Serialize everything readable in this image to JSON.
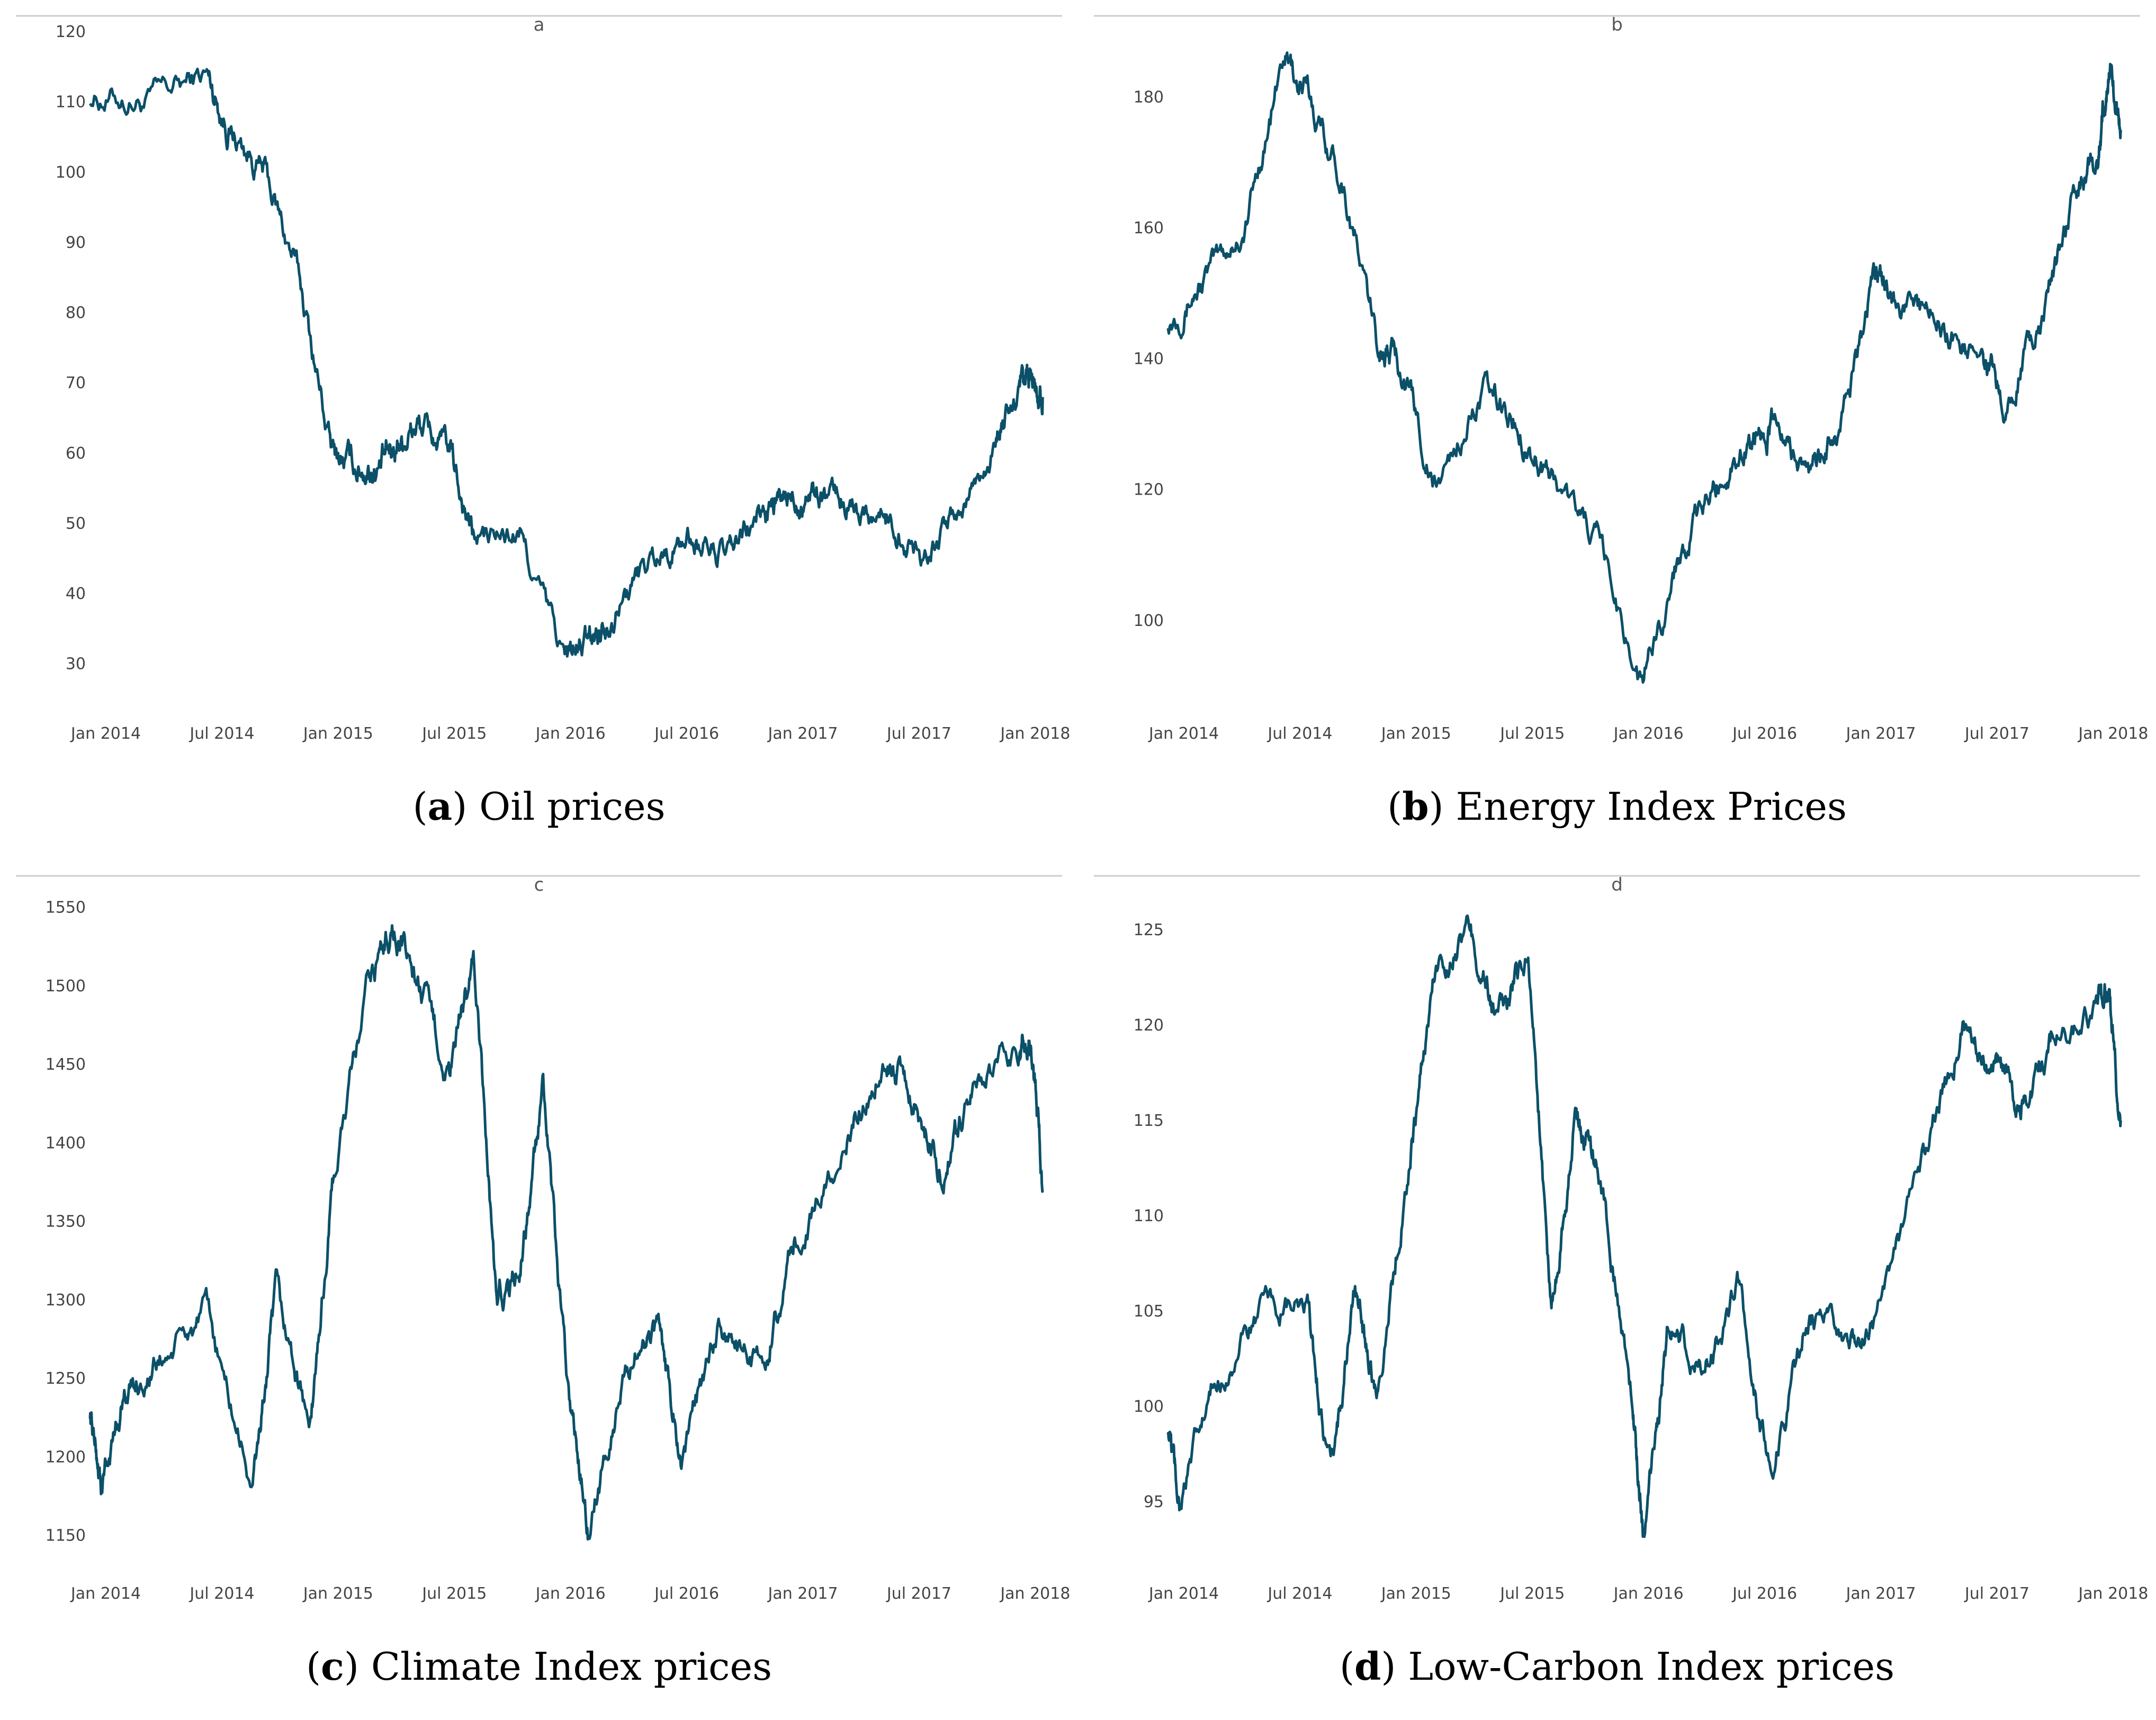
{
  "colors": {
    "line": "#0b5068",
    "rule": "#cccccc",
    "tick_text": "#444444",
    "caption_text": "#000000"
  },
  "chart_data": [
    {
      "type": "line",
      "panel_label": "a",
      "caption_letter": "a",
      "caption_text": "Oil prices",
      "x_ticks": [
        "Jan 2014",
        "Jul 2014",
        "Jan 2015",
        "Jul 2015",
        "Jan 2016",
        "Jul 2016",
        "Jan 2017",
        "Jul 2017",
        "Jan 2018"
      ],
      "x_range": [
        2014.0,
        2018.17
      ],
      "y_ticks": [
        30,
        40,
        50,
        60,
        70,
        80,
        90,
        100,
        110,
        120
      ],
      "y_range": [
        25,
        120
      ],
      "series": [
        {
          "name": "Oil price",
          "x": [
            2014.0,
            2014.25,
            2014.5,
            2014.6,
            2014.75,
            2014.9,
            2015.04,
            2015.15,
            2015.25,
            2015.33,
            2015.42,
            2015.55,
            2015.65,
            2015.85,
            2016.04,
            2016.15,
            2016.25,
            2016.42,
            2016.58,
            2016.75,
            2016.9,
            2017.0,
            2017.1,
            2017.25,
            2017.42,
            2017.58,
            2017.75,
            2017.9,
            2018.0,
            2018.05,
            2018.1
          ],
          "values": [
            111,
            110,
            114,
            106,
            100,
            85,
            60,
            58,
            58,
            62,
            64,
            60,
            48,
            48,
            31,
            33,
            38,
            45,
            48,
            45,
            52,
            53,
            55,
            53,
            51,
            46,
            52,
            62,
            68,
            70,
            68
          ]
        }
      ]
    },
    {
      "type": "line",
      "panel_label": "b",
      "caption_letter": "b",
      "caption_text": "Energy Index Prices",
      "x_ticks": [
        "Jan 2014",
        "Jul 2014",
        "Jan 2015",
        "Jul 2015",
        "Jan 2016",
        "Jul 2016",
        "Jan 2017",
        "Jul 2017",
        "Jan 2018"
      ],
      "x_range": [
        2014.0,
        2018.17
      ],
      "y_ticks": [
        100,
        120,
        140,
        160,
        180
      ],
      "y_range": [
        88,
        190
      ],
      "series": [
        {
          "name": "Energy Index",
          "x": [
            2014.0,
            2014.15,
            2014.33,
            2014.5,
            2014.6,
            2014.75,
            2014.9,
            2015.0,
            2015.15,
            2015.35,
            2015.5,
            2015.65,
            2015.85,
            2016.04,
            2016.2,
            2016.35,
            2016.5,
            2016.6,
            2016.75,
            2016.9,
            2017.04,
            2017.15,
            2017.33,
            2017.5,
            2017.6,
            2017.75,
            2017.9,
            2018.0,
            2018.05,
            2018.1
          ],
          "values": [
            146,
            152,
            160,
            186,
            180,
            168,
            142,
            140,
            120,
            135,
            130,
            122,
            112,
            90,
            110,
            120,
            128,
            130,
            122,
            130,
            152,
            150,
            145,
            140,
            135,
            145,
            165,
            170,
            185,
            175
          ]
        }
      ]
    },
    {
      "type": "line",
      "panel_label": "c",
      "caption_letter": "c",
      "caption_text": "Climate Index prices",
      "x_ticks": [
        "Jan 2014",
        "Jul 2014",
        "Jan 2015",
        "Jul 2015",
        "Jan 2016",
        "Jul 2016",
        "Jan 2017",
        "Jul 2017",
        "Jan 2018"
      ],
      "x_range": [
        2014.0,
        2018.17
      ],
      "y_ticks": [
        1150,
        1200,
        1250,
        1300,
        1350,
        1400,
        1450,
        1500,
        1550
      ],
      "y_range": [
        1135,
        1560
      ],
      "series": [
        {
          "name": "Climate Index",
          "x": [
            2014.0,
            2014.05,
            2014.15,
            2014.3,
            2014.5,
            2014.7,
            2014.8,
            2014.95,
            2015.05,
            2015.2,
            2015.3,
            2015.42,
            2015.55,
            2015.65,
            2015.75,
            2015.85,
            2015.95,
            2016.05,
            2016.15,
            2016.3,
            2016.45,
            2016.55,
            2016.7,
            2016.9,
            2017.04,
            2017.25,
            2017.42,
            2017.55,
            2017.67,
            2017.8,
            2018.0,
            2018.05,
            2018.1
          ],
          "values": [
            1230,
            1180,
            1240,
            1260,
            1290,
            1180,
            1300,
            1220,
            1380,
            1500,
            1540,
            1500,
            1440,
            1520,
            1300,
            1320,
            1430,
            1250,
            1150,
            1260,
            1280,
            1200,
            1280,
            1260,
            1340,
            1400,
            1460,
            1430,
            1380,
            1440,
            1460,
            1470,
            1370
          ]
        }
      ]
    },
    {
      "type": "line",
      "panel_label": "d",
      "caption_letter": "d",
      "caption_text": "Low-Carbon Index prices",
      "x_ticks": [
        "Jan 2014",
        "Jul 2014",
        "Jan 2015",
        "Jul 2015",
        "Jan 2016",
        "Jul 2016",
        "Jan 2017",
        "Jul 2017",
        "Jan 2018"
      ],
      "x_range": [
        2014.0,
        2018.17
      ],
      "y_ticks": [
        95,
        100,
        105,
        110,
        115,
        120,
        125
      ],
      "y_range": [
        92,
        127
      ],
      "series": [
        {
          "name": "Low-Carbon Index",
          "x": [
            2014.0,
            2014.05,
            2014.2,
            2014.4,
            2014.6,
            2014.7,
            2014.8,
            2014.9,
            2015.04,
            2015.15,
            2015.3,
            2015.42,
            2015.55,
            2015.65,
            2015.75,
            2015.85,
            2016.0,
            2016.05,
            2016.15,
            2016.3,
            2016.45,
            2016.6,
            2016.75,
            2016.9,
            2017.04,
            2017.25,
            2017.42,
            2017.55,
            2017.67,
            2017.8,
            2018.0,
            2018.05,
            2018.1
          ],
          "values": [
            99,
            95,
            101,
            105,
            105,
            96,
            106,
            101,
            113,
            123,
            125,
            120,
            124,
            105,
            115,
            113,
            100,
            93,
            104,
            102,
            106,
            96,
            105,
            103,
            104,
            113,
            120,
            118,
            116,
            119,
            121,
            122,
            115
          ]
        }
      ]
    }
  ]
}
